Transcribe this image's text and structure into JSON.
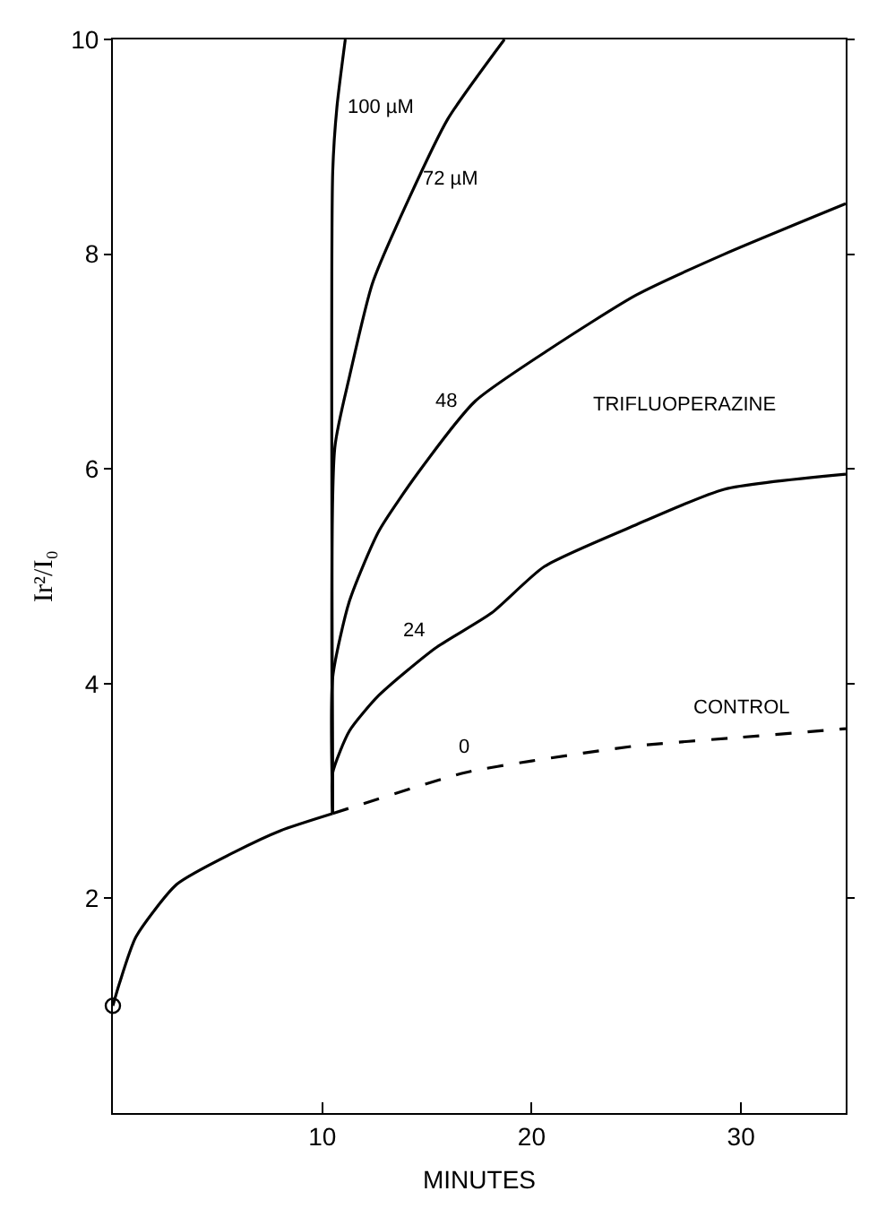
{
  "chart_data": {
    "type": "line",
    "xlabel": "MINUTES",
    "ylabel": "Ir²/I₀",
    "xlim": [
      0,
      35
    ],
    "ylim": [
      0,
      10
    ],
    "xticks": [
      10,
      20,
      30
    ],
    "yticks": [
      2,
      4,
      6,
      8,
      10
    ],
    "series": [
      {
        "color": "#000000",
        "line_style": "solid",
        "x": [
          0,
          0.3,
          1.1,
          3.05,
          5.8,
          8.0,
          10.5
        ],
        "values": [
          1.0,
          1.2,
          1.64,
          2.13,
          2.43,
          2.63,
          2.79
        ]
      },
      {
        "color": "#000000",
        "line_style": "dashed",
        "x": [
          10.5,
          16.8,
          20,
          25,
          30,
          35
        ],
        "values": [
          2.79,
          3.17,
          3.28,
          3.42,
          3.5,
          3.58
        ]
      },
      {
        "color": "#000000",
        "line_style": "solid",
        "x": [
          10.5,
          10.5,
          11.3,
          12.7,
          15.4,
          18.1,
          20.6,
          25.0,
          29.2,
          35
        ],
        "values": [
          2.79,
          3.17,
          3.56,
          3.89,
          4.33,
          4.66,
          5.09,
          5.48,
          5.81,
          5.95
        ]
      },
      {
        "color": "#000000",
        "line_style": "solid",
        "x": [
          10.5,
          10.5,
          11.3,
          12.7,
          14.6,
          17.3,
          20.9,
          25.0,
          29.2,
          35
        ],
        "values": [
          2.79,
          4.06,
          4.77,
          5.42,
          5.97,
          6.63,
          7.12,
          7.62,
          8.0,
          8.47
        ]
      },
      {
        "color": "#000000",
        "line_style": "solid",
        "x": [
          10.5,
          10.6,
          11.3,
          12.4,
          14.1,
          16.0,
          18.7
        ],
        "values": [
          2.79,
          6.2,
          6.86,
          7.73,
          8.5,
          9.26,
          10
        ]
      },
      {
        "color": "#000000",
        "line_style": "solid",
        "x": [
          10.5,
          10.5,
          10.7,
          11.1
        ],
        "values": [
          2.79,
          8.77,
          9.37,
          10
        ]
      },
      {
        "type": "scatter",
        "marker": "circle",
        "color": "#000000",
        "x": [
          0
        ],
        "values": [
          1.0
        ]
      }
    ],
    "annotations": [
      {
        "text": "100 µM",
        "x": 10.7,
        "y": 9.37
      },
      {
        "text": "72 µM",
        "x": 14.1,
        "y": 8.5
      },
      {
        "text": "48",
        "x": 17.3,
        "y": 6.63
      },
      {
        "text": "24",
        "x": 15.4,
        "y": 4.33
      },
      {
        "text": "0",
        "x": 16.8,
        "y": 3.17
      },
      {
        "text": "CONTROL",
        "x": 30,
        "y": 3.5
      },
      "TRIFLUOPERAZINE"
    ]
  }
}
